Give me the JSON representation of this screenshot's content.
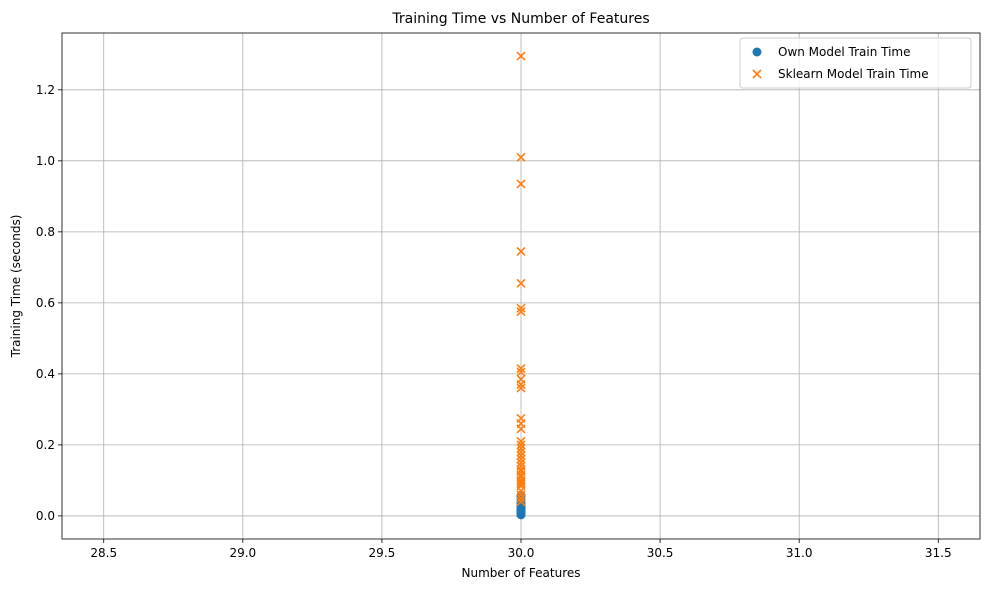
{
  "chart_data": {
    "type": "scatter",
    "title": "Training Time vs Number of Features",
    "xlabel": "Number of Features",
    "ylabel": "Training Time (seconds)",
    "xlim": [
      28.35,
      31.65
    ],
    "ylim": [
      -0.065,
      1.36
    ],
    "xticks": [
      28.5,
      29.0,
      29.5,
      30.0,
      30.5,
      31.0,
      31.5
    ],
    "xtick_labels": [
      "28.5",
      "29.0",
      "29.5",
      "30.0",
      "30.5",
      "31.0",
      "31.5"
    ],
    "yticks": [
      0.0,
      0.2,
      0.4,
      0.6,
      0.8,
      1.0,
      1.2
    ],
    "ytick_labels": [
      "0.0",
      "0.2",
      "0.4",
      "0.6",
      "0.8",
      "1.0",
      "1.2"
    ],
    "grid": true,
    "legend_position": "top-right",
    "series": [
      {
        "name": "Own Model Train Time",
        "marker": "circle",
        "color": "#1f77b4",
        "x": [
          30,
          30,
          30,
          30,
          30,
          30,
          30,
          30,
          30,
          30,
          30,
          30,
          30,
          30
        ],
        "y": [
          0.003,
          0.005,
          0.008,
          0.01,
          0.012,
          0.015,
          0.018,
          0.02,
          0.025,
          0.03,
          0.035,
          0.04,
          0.05,
          0.058
        ]
      },
      {
        "name": "Sklearn Model Train Time",
        "marker": "x",
        "color": "#ff7f0e",
        "x": [
          30,
          30,
          30,
          30,
          30,
          30,
          30,
          30,
          30,
          30,
          30,
          30,
          30,
          30,
          30,
          30,
          30,
          30,
          30,
          30,
          30,
          30,
          30,
          30,
          30,
          30,
          30,
          30,
          30,
          30,
          30,
          30,
          30,
          30,
          30
        ],
        "y": [
          1.295,
          1.01,
          0.935,
          0.745,
          0.655,
          0.585,
          0.575,
          0.415,
          0.405,
          0.385,
          0.37,
          0.36,
          0.275,
          0.26,
          0.245,
          0.21,
          0.2,
          0.19,
          0.18,
          0.17,
          0.16,
          0.15,
          0.14,
          0.13,
          0.125,
          0.115,
          0.11,
          0.1,
          0.095,
          0.09,
          0.085,
          0.07,
          0.06,
          0.05,
          0.04
        ]
      }
    ]
  }
}
